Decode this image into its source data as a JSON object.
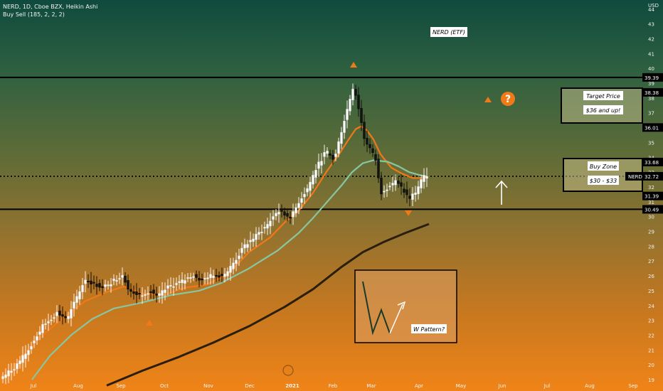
{
  "header": {
    "symbol_line": "NERD, 1D, Cboe BZX, Heikin Ashi",
    "indicator_line": "Buy Sell  (185, 2, 2, 2)",
    "currency": "USD"
  },
  "chart_data": {
    "type": "candlestick",
    "title": "NERD (ETF)",
    "ylim": [
      18.5,
      44.3
    ],
    "y_ticks": [
      19,
      20,
      21,
      22,
      23,
      24,
      25,
      26,
      27,
      28,
      29,
      30,
      31,
      32,
      33,
      34,
      35,
      36,
      37,
      38,
      39,
      40,
      41,
      42,
      43,
      44
    ],
    "x_ticks": [
      "Jul",
      "Aug",
      "Sep",
      "Oct",
      "Nov",
      "Dec",
      "2021",
      "Feb",
      "Mar",
      "Apr",
      "May",
      "Jun",
      "Jul",
      "Aug",
      "Sep"
    ],
    "price_labels": {
      "high": "39.39",
      "target_top": "38.38",
      "target_bottom": "36.01",
      "buy_top": "33.68",
      "current_symbol": "NERD",
      "current": "32.72",
      "buy_bottom": "31.39",
      "support": "30.49"
    },
    "levels": {
      "resistance": 39.39,
      "support": 30.49,
      "current": 32.72
    },
    "annotations": {
      "etf_label": "NERD (ETF)",
      "target_title": "Target Price",
      "target_range": "$36 and up!",
      "buy_title": "Buy Zone",
      "buy_range": "$30 - $33",
      "w_pattern": "W Pattern?",
      "question": "?"
    },
    "series": [
      {
        "name": "Heikin Ashi",
        "kind": "candles"
      },
      {
        "name": "EMA fast",
        "color": "#f07818",
        "points": [
          [
            0,
            19.3
          ],
          [
            30,
            20.6
          ],
          [
            60,
            22.0
          ],
          [
            90,
            23.2
          ],
          [
            120,
            24.3
          ],
          [
            150,
            24.9
          ],
          [
            175,
            25.3
          ],
          [
            200,
            24.8
          ],
          [
            230,
            24.7
          ],
          [
            260,
            25.2
          ],
          [
            290,
            25.4
          ],
          [
            320,
            26.1
          ],
          [
            350,
            27.6
          ],
          [
            380,
            28.6
          ],
          [
            400,
            29.6
          ],
          [
            420,
            30.4
          ],
          [
            440,
            31.6
          ],
          [
            460,
            33.1
          ],
          [
            478,
            34.3
          ],
          [
            490,
            35.2
          ],
          [
            500,
            35.9
          ],
          [
            508,
            36.1
          ],
          [
            516,
            35.8
          ],
          [
            525,
            35.2
          ],
          [
            535,
            34.2
          ],
          [
            550,
            33.3
          ],
          [
            565,
            32.9
          ],
          [
            580,
            32.6
          ],
          [
            595,
            32.6
          ],
          [
            602,
            32.7
          ]
        ]
      },
      {
        "name": "EMA slow",
        "color": "#86c7a2",
        "points": [
          [
            45,
            19.0
          ],
          [
            70,
            20.6
          ],
          [
            100,
            22.0
          ],
          [
            130,
            23.1
          ],
          [
            160,
            23.8
          ],
          [
            200,
            24.2
          ],
          [
            240,
            24.7
          ],
          [
            280,
            25.0
          ],
          [
            310,
            25.5
          ],
          [
            350,
            26.5
          ],
          [
            390,
            27.7
          ],
          [
            420,
            28.9
          ],
          [
            440,
            29.9
          ],
          [
            460,
            31.0
          ],
          [
            480,
            32.1
          ],
          [
            495,
            33.0
          ],
          [
            510,
            33.6
          ],
          [
            525,
            33.8
          ],
          [
            545,
            33.7
          ],
          [
            560,
            33.4
          ],
          [
            575,
            33.0
          ],
          [
            590,
            32.8
          ],
          [
            600,
            32.7
          ]
        ]
      },
      {
        "name": "SMA long",
        "color": "#2a1e0e",
        "points": [
          [
            150,
            18.6
          ],
          [
            200,
            19.6
          ],
          [
            250,
            20.5
          ],
          [
            300,
            21.5
          ],
          [
            350,
            22.6
          ],
          [
            400,
            23.9
          ],
          [
            440,
            25.1
          ],
          [
            480,
            26.6
          ],
          [
            510,
            27.6
          ],
          [
            540,
            28.3
          ],
          [
            570,
            28.9
          ],
          [
            603,
            29.5
          ]
        ]
      }
    ]
  }
}
